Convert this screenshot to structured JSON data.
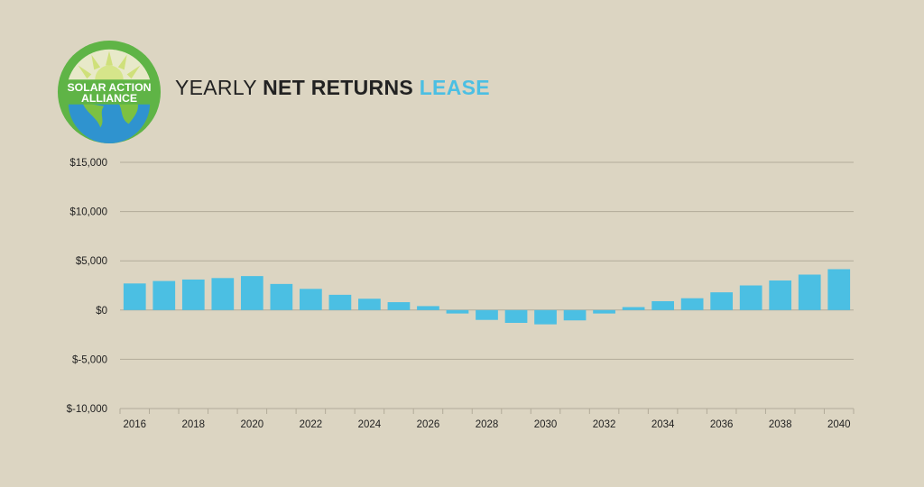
{
  "colors": {
    "background": "#dcd5c2",
    "bar": "#4bbfe3",
    "title_accent": "#4bbfe3",
    "grid": "#b2ab99",
    "logo_green": "#5fb446",
    "logo_sun": "#cfe07a",
    "logo_earth_blue": "#2f93cf",
    "logo_land": "#7cc142"
  },
  "logo": {
    "line1": "SOLAR ACTION",
    "line2": "ALLIANCE"
  },
  "title": {
    "part1": "YEARLY ",
    "part2": "NET RETURNS",
    "part3": " LEASE"
  },
  "chart_data": {
    "type": "bar",
    "title": "YEARLY NET RETURNS LEASE",
    "xlabel": "",
    "ylabel": "",
    "ylim": [
      -10000,
      15000
    ],
    "grid": true,
    "y_ticks": [
      15000,
      10000,
      5000,
      0,
      -5000,
      -10000
    ],
    "y_tick_labels": [
      "$15,000",
      "$10,000",
      "$5,000",
      "$0",
      "$-5,000",
      "$-10,000"
    ],
    "x_tick_labels": [
      "2016",
      "2018",
      "2020",
      "2022",
      "2024",
      "2026",
      "2028",
      "2030",
      "2032",
      "2034",
      "2036",
      "2038",
      "2040"
    ],
    "categories": [
      "2016",
      "2017",
      "2018",
      "2019",
      "2020",
      "2021",
      "2022",
      "2023",
      "2024",
      "2025",
      "2026",
      "2027",
      "2028",
      "2029",
      "2030",
      "2031",
      "2032",
      "2033",
      "2034",
      "2035",
      "2036",
      "2037",
      "2038",
      "2039",
      "2040"
    ],
    "values": [
      2700,
      2950,
      3100,
      3250,
      3450,
      2650,
      2150,
      1550,
      1150,
      800,
      400,
      -350,
      -1000,
      -1300,
      -1450,
      -1050,
      -350,
      300,
      900,
      1200,
      1800,
      2500,
      3000,
      3600,
      4150
    ]
  }
}
